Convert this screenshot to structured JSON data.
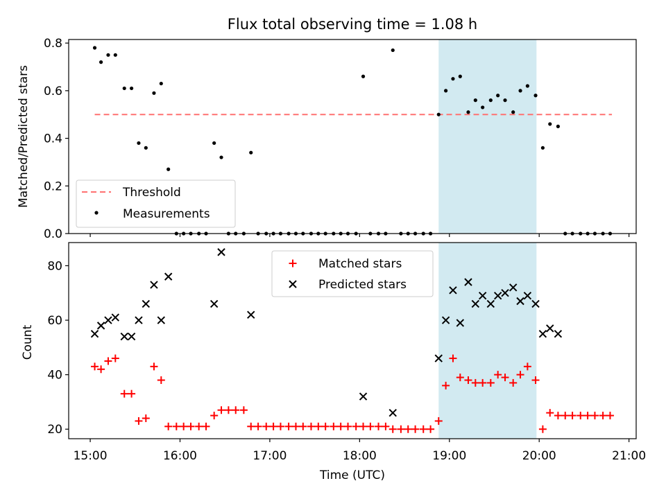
{
  "title": "Flux total observing time = 1.08 h",
  "chart_data": [
    {
      "type": "scatter",
      "ylabel": "Matched/Predicted stars",
      "x_ticks": [
        "15:00",
        "16:00",
        "17:00",
        "18:00",
        "19:00",
        "20:00",
        "21:00"
      ],
      "y_ticks": [
        "0.0",
        "0.2",
        "0.4",
        "0.6",
        "0.8"
      ],
      "xlim": [
        14.76,
        21.08
      ],
      "ylim": [
        0,
        0.815
      ],
      "highlight_span": [
        18.88,
        19.97
      ],
      "threshold": {
        "name": "Threshold",
        "value": 0.5,
        "x_range": [
          15.05,
          20.81
        ],
        "color": "#ff7070"
      },
      "legend": {
        "placement": "lower-left",
        "entries": [
          "Threshold",
          "Measurements"
        ]
      },
      "series": [
        {
          "name": "Measurements",
          "color": "#000000",
          "x": [
            15.05,
            15.12,
            15.2,
            15.28,
            15.38,
            15.46,
            15.54,
            15.62,
            15.71,
            15.79,
            15.87,
            15.96,
            16.04,
            16.12,
            16.21,
            16.29,
            16.38,
            16.46,
            16.54,
            16.62,
            16.71,
            16.79,
            16.87,
            16.96,
            17.04,
            17.12,
            17.21,
            17.29,
            17.37,
            17.46,
            17.54,
            17.62,
            17.71,
            17.79,
            17.87,
            17.96,
            18.04,
            18.12,
            18.21,
            18.29,
            18.37,
            18.46,
            18.54,
            18.62,
            18.71,
            18.79,
            18.88,
            18.96,
            19.04,
            19.12,
            19.21,
            19.29,
            19.37,
            19.46,
            19.54,
            19.62,
            19.71,
            19.79,
            19.87,
            19.96,
            20.04,
            20.12,
            20.21,
            20.29,
            20.37,
            20.46,
            20.54,
            20.62,
            20.71,
            20.79
          ],
          "y": [
            0.78,
            0.72,
            0.75,
            0.75,
            0.61,
            0.61,
            0.38,
            0.36,
            0.59,
            0.63,
            0.27,
            0,
            0,
            0,
            0,
            0,
            0.38,
            0.32,
            0,
            0,
            0,
            0.34,
            0,
            0,
            0,
            0,
            0,
            0,
            0,
            0,
            0,
            0,
            0,
            0,
            0,
            0,
            0.66,
            0,
            0,
            0,
            0.77,
            0,
            0,
            0,
            0,
            0,
            0.5,
            0.6,
            0.65,
            0.66,
            0.51,
            0.56,
            0.53,
            0.56,
            0.58,
            0.56,
            0.51,
            0.6,
            0.62,
            0.58,
            0.36,
            0.46,
            0.45,
            0,
            0,
            0,
            0,
            0,
            0,
            0
          ]
        }
      ]
    },
    {
      "type": "scatter",
      "ylabel": "Count",
      "xlabel": "Time (UTC)",
      "x_ticks": [
        "15:00",
        "16:00",
        "17:00",
        "18:00",
        "19:00",
        "20:00",
        "21:00"
      ],
      "y_ticks": [
        "20",
        "40",
        "60",
        "80"
      ],
      "xlim": [
        14.76,
        21.08
      ],
      "ylim": [
        16.5,
        88.5
      ],
      "highlight_span": [
        18.88,
        19.97
      ],
      "legend": {
        "placement": "top-center",
        "entries": [
          "Matched stars",
          "Predicted stars"
        ]
      },
      "series": [
        {
          "name": "Matched stars",
          "marker": "+",
          "color": "#ff0000",
          "x": [
            15.05,
            15.12,
            15.2,
            15.28,
            15.38,
            15.46,
            15.54,
            15.62,
            15.71,
            15.79,
            15.87,
            15.96,
            16.04,
            16.12,
            16.21,
            16.29,
            16.38,
            16.46,
            16.54,
            16.62,
            16.71,
            16.79,
            16.87,
            16.96,
            17.04,
            17.12,
            17.21,
            17.29,
            17.37,
            17.46,
            17.54,
            17.62,
            17.71,
            17.79,
            17.87,
            17.96,
            18.04,
            18.12,
            18.21,
            18.29,
            18.37,
            18.46,
            18.54,
            18.62,
            18.71,
            18.79,
            18.88,
            18.96,
            19.04,
            19.12,
            19.21,
            19.29,
            19.37,
            19.46,
            19.54,
            19.62,
            19.71,
            19.79,
            19.87,
            19.96,
            20.04,
            20.12,
            20.21,
            20.29,
            20.37,
            20.46,
            20.54,
            20.62,
            20.71,
            20.79
          ],
          "y": [
            43,
            42,
            45,
            46,
            33,
            33,
            23,
            24,
            43,
            38,
            21,
            21,
            21,
            21,
            21,
            21,
            25,
            27,
            27,
            27,
            27,
            21,
            21,
            21,
            21,
            21,
            21,
            21,
            21,
            21,
            21,
            21,
            21,
            21,
            21,
            21,
            21,
            21,
            21,
            21,
            20,
            20,
            20,
            20,
            20,
            20,
            23,
            36,
            46,
            39,
            38,
            37,
            37,
            37,
            40,
            39,
            37,
            40,
            43,
            38,
            20,
            26,
            25,
            25,
            25,
            25,
            25,
            25,
            25,
            25
          ]
        },
        {
          "name": "Predicted stars",
          "marker": "x",
          "color": "#000000",
          "x": [
            15.05,
            15.12,
            15.2,
            15.28,
            15.38,
            15.46,
            15.54,
            15.62,
            15.71,
            15.79,
            15.87,
            16.38,
            16.46,
            16.79,
            18.04,
            18.37,
            18.88,
            18.96,
            19.04,
            19.12,
            19.21,
            19.29,
            19.37,
            19.46,
            19.54,
            19.62,
            19.71,
            19.79,
            19.87,
            19.96,
            20.04,
            20.12,
            20.21
          ],
          "y": [
            55,
            58,
            60,
            61,
            54,
            54,
            60,
            66,
            73,
            60,
            76,
            66,
            85,
            62,
            32,
            26,
            46,
            60,
            71,
            59,
            74,
            66,
            69,
            66,
            69,
            70,
            72,
            67,
            69,
            66,
            55,
            57,
            55
          ]
        }
      ]
    }
  ]
}
